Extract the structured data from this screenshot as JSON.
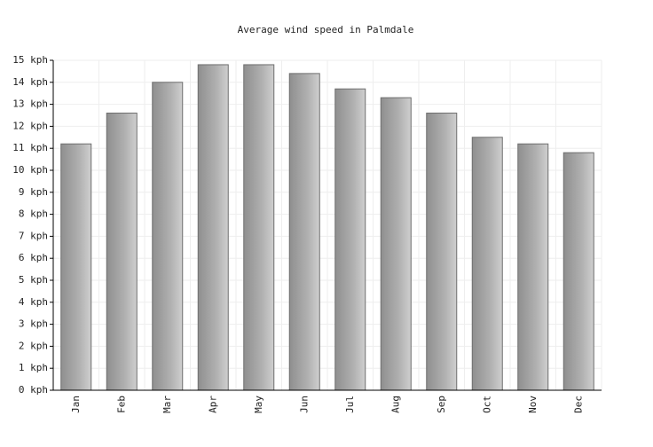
{
  "chart_data": {
    "type": "bar",
    "title": "Average wind speed in Palmdale",
    "categories": [
      "Jan",
      "Feb",
      "Mar",
      "Apr",
      "May",
      "Jun",
      "Jul",
      "Aug",
      "Sep",
      "Oct",
      "Nov",
      "Dec"
    ],
    "values": [
      11.2,
      12.6,
      14.0,
      14.8,
      14.8,
      14.4,
      13.7,
      13.3,
      12.6,
      11.5,
      11.2,
      10.8
    ],
    "color": "#b0b0b0",
    "ylim": [
      0,
      15
    ],
    "yticks": [
      {
        "value": 0,
        "label": "0 kph"
      },
      {
        "value": 1,
        "label": "1 kph"
      },
      {
        "value": 2,
        "label": "2 kph"
      },
      {
        "value": 3,
        "label": "3 kph"
      },
      {
        "value": 4,
        "label": "4 kph"
      },
      {
        "value": 5,
        "label": "5 kph"
      },
      {
        "value": 6,
        "label": "6 kph"
      },
      {
        "value": 7,
        "label": "7 kph"
      },
      {
        "value": 8,
        "label": "8 kph"
      },
      {
        "value": 9,
        "label": "9 kph"
      },
      {
        "value": 10,
        "label": "10 kph"
      },
      {
        "value": 11,
        "label": "11 kph"
      },
      {
        "value": 12,
        "label": "12 kph"
      },
      {
        "value": 13,
        "label": "13 kph"
      },
      {
        "value": 14,
        "label": "14 kph"
      },
      {
        "value": 15,
        "label": "15 kph"
      }
    ],
    "grid": true
  }
}
